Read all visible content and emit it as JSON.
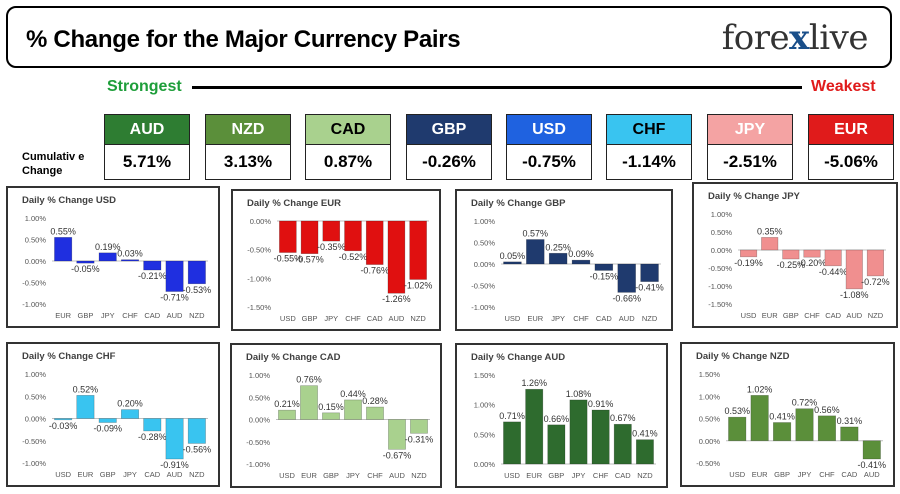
{
  "header": {
    "title": "% Change for the Major Currency Pairs",
    "logo_left": "fore",
    "logo_x": "x",
    "logo_right": "live"
  },
  "strength": {
    "strongest_label": "Strongest",
    "weakest_label": "Weakest",
    "cumulative_label_line1": "Cumulativ e",
    "cumulative_label_line2": "Change"
  },
  "currencies": [
    {
      "name": "AUD",
      "value": "5.71%",
      "color": "#2e7d32",
      "text_color": "#ffffff"
    },
    {
      "name": "NZD",
      "value": "3.13%",
      "color": "#5b8f3a",
      "text_color": "#ffffff"
    },
    {
      "name": "CAD",
      "value": "0.87%",
      "color": "#a9d18e",
      "text_color": "#000000"
    },
    {
      "name": "GBP",
      "value": "-0.26%",
      "color": "#1f3a6e",
      "text_color": "#ffffff"
    },
    {
      "name": "USD",
      "value": "-0.75%",
      "color": "#1f62e0",
      "text_color": "#ffffff"
    },
    {
      "name": "CHF",
      "value": "-1.14%",
      "color": "#39c4f0",
      "text_color": "#000000"
    },
    {
      "name": "JPY",
      "value": "-2.51%",
      "color": "#f4a3a3",
      "text_color": "#ffffff"
    },
    {
      "name": "EUR",
      "value": "-5.06%",
      "color": "#e01b1b",
      "text_color": "#ffffff"
    }
  ],
  "chart_data": [
    {
      "type": "bar",
      "title": "Daily % Change USD",
      "categories": [
        "EUR",
        "GBP",
        "JPY",
        "CHF",
        "CAD",
        "AUD",
        "NZD"
      ],
      "values": [
        0.55,
        -0.05,
        0.19,
        0.03,
        -0.21,
        -0.71,
        -0.53
      ],
      "data_labels": [
        "0.55%",
        "-0.05%",
        "0.19%",
        "0.03%",
        "-0.21%",
        "-0.71%",
        "-0.53%"
      ],
      "ylim": [
        -1.0,
        1.0
      ],
      "yticks": [
        1.0,
        0.5,
        0.0,
        -0.5,
        -1.0
      ],
      "ytick_labels": [
        "1.00%",
        "0.50%",
        "0.00%",
        "-0.50%",
        "-1.00%"
      ],
      "color": "#1f2fe0"
    },
    {
      "type": "bar",
      "title": "Daily % Change EUR",
      "categories": [
        "USD",
        "GBP",
        "JPY",
        "CHF",
        "CAD",
        "AUD",
        "NZD"
      ],
      "values": [
        -0.55,
        -0.57,
        -0.35,
        -0.52,
        -0.76,
        -1.26,
        -1.02
      ],
      "data_labels": [
        "-0.55%",
        "-0.57%",
        "-0.35%",
        "-0.52%",
        "-0.76%",
        "-1.26%",
        "-1.02%"
      ],
      "ylim": [
        -1.5,
        0.0
      ],
      "yticks": [
        0.0,
        -0.5,
        -1.0,
        -1.5
      ],
      "ytick_labels": [
        "0.00%",
        "-0.50%",
        "-1.00%",
        "-1.50%"
      ],
      "color": "#e01010"
    },
    {
      "type": "bar",
      "title": "Daily % Change GBP",
      "categories": [
        "USD",
        "EUR",
        "JPY",
        "CHF",
        "CAD",
        "AUD",
        "NZD"
      ],
      "values": [
        0.05,
        0.57,
        0.25,
        0.09,
        -0.15,
        -0.66,
        -0.41
      ],
      "data_labels": [
        "0.05%",
        "0.57%",
        "0.25%",
        "0.09%",
        "-0.15%",
        "-0.66%",
        "-0.41%"
      ],
      "ylim": [
        -1.0,
        1.0
      ],
      "yticks": [
        1.0,
        0.5,
        0.0,
        -0.5,
        -1.0
      ],
      "ytick_labels": [
        "1.00%",
        "0.50%",
        "0.00%",
        "-0.50%",
        "-1.00%"
      ],
      "color": "#1f3a6e"
    },
    {
      "type": "bar",
      "title": "Daily % Change JPY",
      "categories": [
        "USD",
        "EUR",
        "GBP",
        "CHF",
        "CAD",
        "AUD",
        "NZD"
      ],
      "values": [
        -0.19,
        0.35,
        -0.25,
        -0.2,
        -0.44,
        -1.08,
        -0.72
      ],
      "data_labels": [
        "-0.19%",
        "0.35%",
        "-0.25%",
        "-0.20%",
        "-0.44%",
        "-1.08%",
        "-0.72%"
      ],
      "ylim": [
        -1.5,
        1.0
      ],
      "yticks": [
        1.0,
        0.5,
        0.0,
        -0.5,
        -1.0,
        -1.5
      ],
      "ytick_labels": [
        "1.00%",
        "0.50%",
        "0.00%",
        "-0.50%",
        "-1.00%",
        "-1.50%"
      ],
      "color": "#f08f8f"
    },
    {
      "type": "bar",
      "title": "Daily % Change CHF",
      "categories": [
        "USD",
        "EUR",
        "GBP",
        "JPY",
        "CAD",
        "AUD",
        "NZD"
      ],
      "values": [
        -0.03,
        0.52,
        -0.09,
        0.2,
        -0.28,
        -0.91,
        -0.56
      ],
      "data_labels": [
        "-0.03%",
        "0.52%",
        "-0.09%",
        "0.20%",
        "-0.28%",
        "-0.91%",
        "-0.56%"
      ],
      "ylim": [
        -1.0,
        1.0
      ],
      "yticks": [
        1.0,
        0.5,
        0.0,
        -0.5,
        -1.0
      ],
      "ytick_labels": [
        "1.00%",
        "0.50%",
        "0.00%",
        "-0.50%",
        "-1.00%"
      ],
      "color": "#39c4f0"
    },
    {
      "type": "bar",
      "title": "Daily % Change CAD",
      "categories": [
        "USD",
        "EUR",
        "GBP",
        "JPY",
        "CHF",
        "AUD",
        "NZD"
      ],
      "values": [
        0.21,
        0.76,
        0.15,
        0.44,
        0.28,
        -0.67,
        -0.31
      ],
      "data_labels": [
        "0.21%",
        "0.76%",
        "0.15%",
        "0.44%",
        "0.28%",
        "-0.67%",
        "-0.31%"
      ],
      "ylim": [
        -1.0,
        1.0
      ],
      "yticks": [
        1.0,
        0.5,
        0.0,
        -0.5,
        -1.0
      ],
      "ytick_labels": [
        "1.00%",
        "0.50%",
        "0.00%",
        "-0.50%",
        "-1.00%"
      ],
      "color": "#a9d18e"
    },
    {
      "type": "bar",
      "title": "Daily % Change AUD",
      "categories": [
        "USD",
        "EUR",
        "GBP",
        "JPY",
        "CHF",
        "CAD",
        "NZD"
      ],
      "values": [
        0.71,
        1.26,
        0.66,
        1.08,
        0.91,
        0.67,
        0.41
      ],
      "data_labels": [
        "0.71%",
        "1.26%",
        "0.66%",
        "1.08%",
        "0.91%",
        "0.67%",
        "0.41%"
      ],
      "ylim": [
        0.0,
        1.5
      ],
      "yticks": [
        1.5,
        1.0,
        0.5,
        0.0
      ],
      "ytick_labels": [
        "1.50%",
        "1.00%",
        "0.50%",
        "0.00%"
      ],
      "color": "#2e6b2e"
    },
    {
      "type": "bar",
      "title": "Daily % Change NZD",
      "categories": [
        "USD",
        "EUR",
        "GBP",
        "JPY",
        "CHF",
        "CAD",
        "AUD"
      ],
      "values": [
        0.53,
        1.02,
        0.41,
        0.72,
        0.56,
        0.31,
        -0.41
      ],
      "data_labels": [
        "0.53%",
        "1.02%",
        "0.41%",
        "0.72%",
        "0.56%",
        "0.31%",
        "-0.41%"
      ],
      "ylim": [
        -0.5,
        1.5
      ],
      "yticks": [
        1.5,
        1.0,
        0.5,
        0.0,
        -0.5
      ],
      "ytick_labels": [
        "1.50%",
        "1.00%",
        "0.50%",
        "0.00%",
        "-0.50%"
      ],
      "color": "#5b8f3a"
    }
  ]
}
